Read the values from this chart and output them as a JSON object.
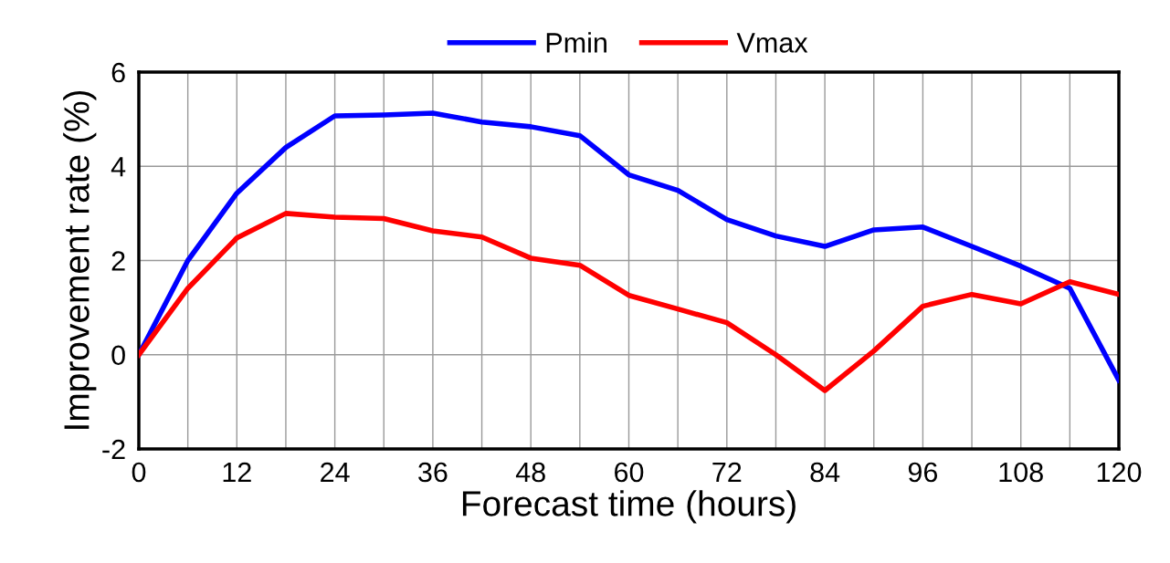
{
  "chart_data": {
    "type": "line",
    "xlabel": "Forecast time (hours)",
    "ylabel": "Improvement rate (%)",
    "x": [
      0,
      6,
      12,
      18,
      24,
      30,
      36,
      42,
      48,
      54,
      60,
      66,
      72,
      78,
      84,
      90,
      96,
      102,
      108,
      114,
      120
    ],
    "series": [
      {
        "name": "Pmin",
        "color": "#0000ff",
        "values": [
          0,
          2.0,
          3.43,
          4.4,
          5.07,
          5.09,
          5.13,
          4.94,
          4.84,
          4.65,
          3.82,
          3.49,
          2.87,
          2.52,
          2.3,
          2.65,
          2.71,
          2.3,
          1.88,
          1.41,
          -0.54
        ]
      },
      {
        "name": "Vmax",
        "color": "#ff0000",
        "values": [
          0,
          1.41,
          2.48,
          3.0,
          2.92,
          2.89,
          2.63,
          2.5,
          2.05,
          1.9,
          1.26,
          0.97,
          0.68,
          0.0,
          -0.76,
          0.08,
          1.03,
          1.28,
          1.08,
          1.55,
          1.28
        ]
      }
    ],
    "xlim": [
      0,
      120
    ],
    "xticks": [
      0,
      {
        "value": 6,
        "label": null
      },
      12,
      {
        "value": 18,
        "label": null
      },
      24,
      {
        "value": 30,
        "label": null
      },
      36,
      {
        "value": 42,
        "label": null
      },
      48,
      {
        "value": 54,
        "label": null
      },
      60,
      {
        "value": 66,
        "label": null
      },
      72,
      {
        "value": 78,
        "label": null
      },
      84,
      {
        "value": 90,
        "label": null
      },
      96,
      {
        "value": 102,
        "label": null
      },
      108,
      {
        "value": 114,
        "label": null
      },
      120
    ],
    "ylim": [
      -2,
      6
    ],
    "yticks": [
      -2,
      0,
      2,
      4,
      6
    ],
    "grid": true,
    "legend": "top",
    "marker": "none",
    "line_style": "solid"
  }
}
